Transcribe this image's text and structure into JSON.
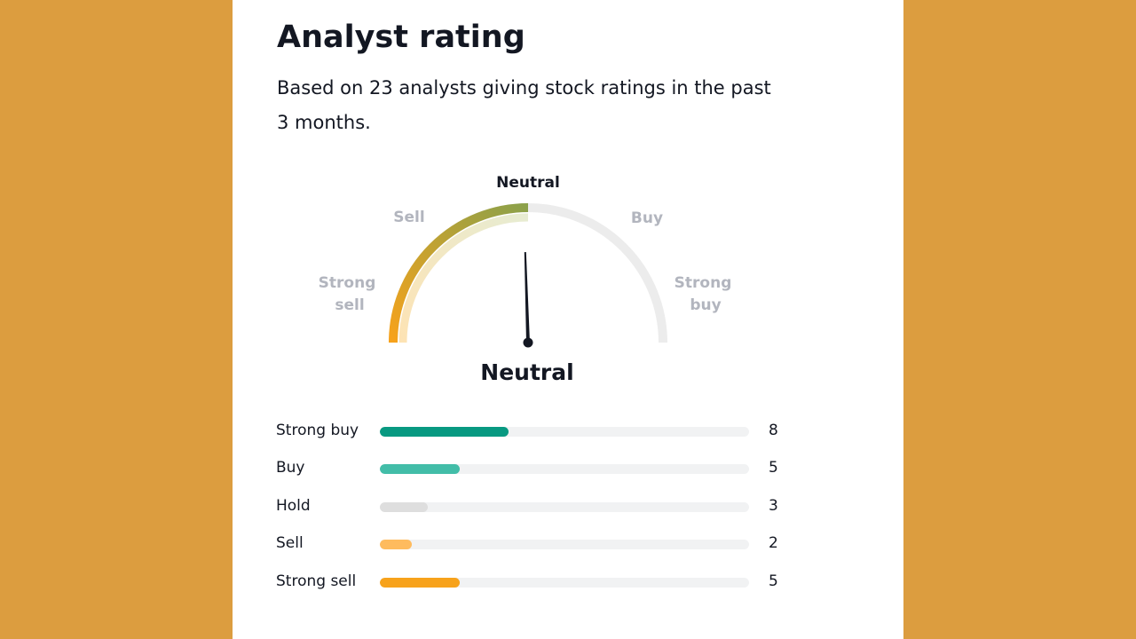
{
  "title": "Analyst rating",
  "subtitle": "Based on 23 analysts giving stock ratings in the past 3 months.",
  "chart_data": [
    {
      "type": "gauge",
      "value": "Neutral",
      "scale": [
        "Strong sell",
        "Sell",
        "Neutral",
        "Buy",
        "Strong buy"
      ],
      "scale_labels": {
        "strong_sell": [
          "Strong",
          "sell"
        ],
        "sell": "Sell",
        "neutral": "Neutral",
        "buy": "Buy",
        "strong_buy": [
          "Strong",
          "buy"
        ]
      },
      "needle_position": 0.49,
      "result_label": "Neutral"
    },
    {
      "type": "bar",
      "orientation": "horizontal",
      "categories": [
        "Strong buy",
        "Buy",
        "Hold",
        "Sell",
        "Strong sell"
      ],
      "values": [
        8,
        5,
        3,
        2,
        5
      ],
      "max": 23,
      "colors": [
        "#089981",
        "#42BDA8",
        "#DEDEDE",
        "#FEBB5E",
        "#F7A21B"
      ]
    }
  ],
  "colors": {
    "background": "#DC9D3F",
    "card": "#FFFFFF",
    "track": "#F1F2F3",
    "gauge_track": "#ECECEC",
    "gauge_active_start": "#F7A21B",
    "gauge_active_end": "#8BA14A",
    "scale_label_inactive": "#B2B5BE",
    "text": "#131722"
  }
}
